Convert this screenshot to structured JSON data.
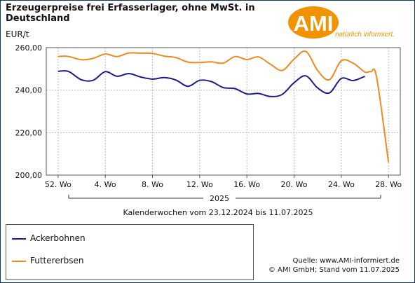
{
  "title": "Erzeugerpreise frei Erfasserlager, ohne MwSt. in Deutschland",
  "logo": {
    "name": "AMI",
    "tagline": "natürlich informiert.",
    "color": "#f39200"
  },
  "source": {
    "line1": "Quelle: www.AMI-informiert.de",
    "line2": "© AMI GmbH; Stand vom  11.07.2025"
  },
  "chart_data": {
    "type": "line",
    "ylabel": "EUR/t",
    "ylim": [
      200,
      260
    ],
    "yticks": [
      "200,00",
      "220,00",
      "240,00",
      "260,00"
    ],
    "ytick_values": [
      200,
      220,
      240,
      260
    ],
    "xticks": [
      "52. Wo",
      "4. Wo",
      "8. Wo",
      "12. Wo",
      "16. Wo",
      "20. Wo",
      "24. Wo",
      "28. Wo"
    ],
    "xtick_weeks": [
      0,
      4,
      8,
      12,
      16,
      20,
      24,
      28
    ],
    "xlim_weeks": [
      -1,
      29
    ],
    "year_label": "2025",
    "xlabel": "Kalenderwochen vom 23.12.2024 bis 11.07.2025",
    "grid": true,
    "legend_position": "bottom-left",
    "series": [
      {
        "name": "Ackerbohnen",
        "color": "#1a1a8c",
        "x": [
          0,
          0.5,
          1,
          2,
          3,
          4,
          5,
          6,
          7,
          8,
          9,
          10,
          11,
          12,
          13,
          14,
          15,
          16,
          17,
          18,
          19,
          20,
          21,
          22,
          23,
          24,
          25,
          26
        ],
        "values": [
          248.8,
          249.1,
          248.5,
          244.8,
          244.7,
          248.7,
          246.5,
          247.8,
          246.2,
          245.2,
          245.9,
          244.7,
          241.8,
          244.6,
          244.0,
          241.2,
          240.7,
          238.2,
          238.4,
          237.0,
          238.0,
          243.5,
          246.7,
          241.0,
          238.7,
          245.5,
          244.5,
          246.5
        ]
      },
      {
        "name": "Futtererbsen",
        "color": "#f08a1e",
        "x": [
          0,
          0.5,
          1,
          2,
          3,
          4,
          5,
          6,
          7,
          8,
          9,
          10,
          11,
          12,
          13,
          14,
          15,
          16,
          17,
          18,
          19,
          20,
          21,
          22,
          23,
          24,
          25,
          26,
          26.5,
          27,
          28
        ],
        "values": [
          255.8,
          256.0,
          255.7,
          254.3,
          255.0,
          257.0,
          255.8,
          257.5,
          257.4,
          257.3,
          256.0,
          255.3,
          253.2,
          253.0,
          253.3,
          252.7,
          255.8,
          254.4,
          255.6,
          252.2,
          249.3,
          254.6,
          258.2,
          249.2,
          244.9,
          253.8,
          252.7,
          248.5,
          248.7,
          246.0,
          206.0
        ]
      }
    ]
  }
}
